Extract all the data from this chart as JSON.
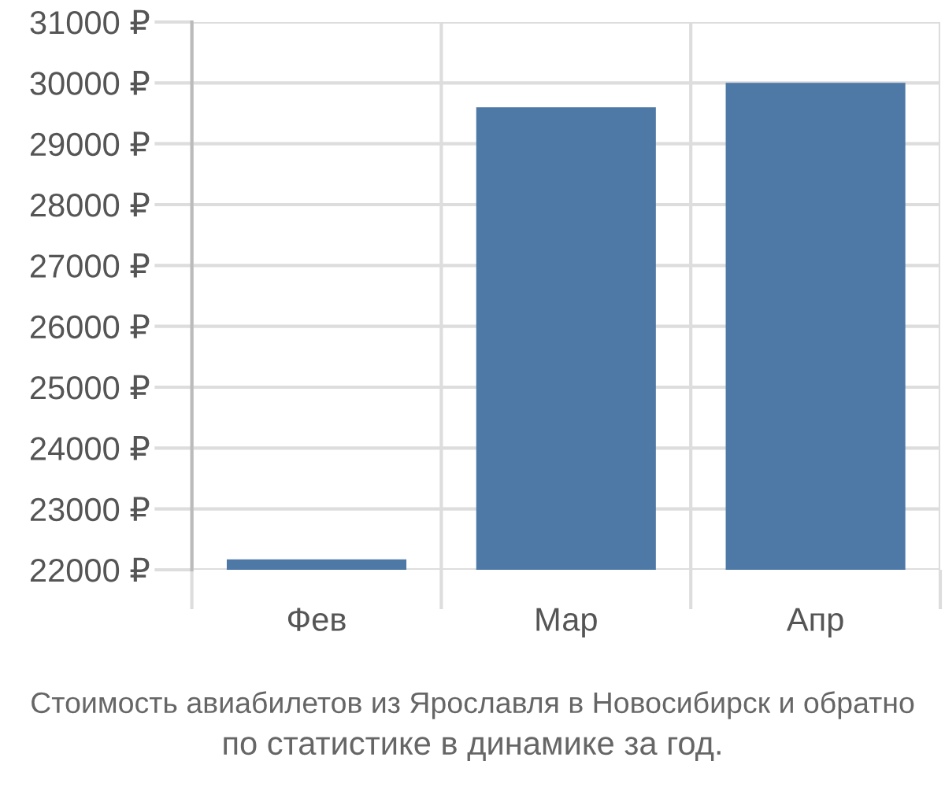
{
  "chart_data": {
    "type": "bar",
    "categories": [
      "Фев",
      "Мар",
      "Апр"
    ],
    "values": [
      22170,
      29600,
      30000
    ],
    "color": "#4e79a7",
    "ylim": [
      22000,
      31000
    ],
    "yticks": [
      {
        "value": 22000,
        "label": "22000 ₽"
      },
      {
        "value": 23000,
        "label": "23000 ₽"
      },
      {
        "value": 24000,
        "label": "24000 ₽"
      },
      {
        "value": 25000,
        "label": "25000 ₽"
      },
      {
        "value": 26000,
        "label": "26000 ₽"
      },
      {
        "value": 27000,
        "label": "27000 ₽"
      },
      {
        "value": 28000,
        "label": "28000 ₽"
      },
      {
        "value": 29000,
        "label": "29000 ₽"
      },
      {
        "value": 30000,
        "label": "30000 ₽"
      },
      {
        "value": 31000,
        "label": "31000 ₽"
      }
    ],
    "grid": true,
    "annotations": [
      "Стоимость авиабилетов из Ярославля в Новосибирск и обратно",
      "по статистике в динамике за год."
    ]
  }
}
